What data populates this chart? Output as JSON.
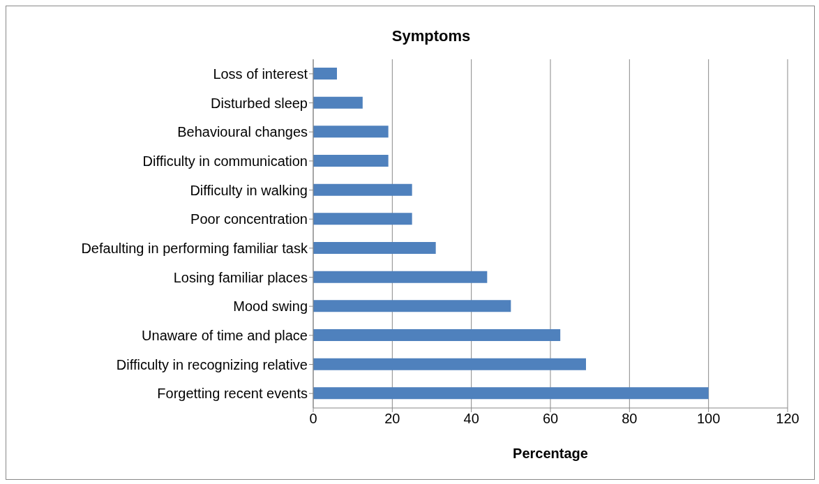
{
  "chart_data": {
    "type": "bar",
    "orientation": "horizontal",
    "title": "Symptoms",
    "xlabel": "Percentage",
    "categories": [
      "Loss of interest",
      "Disturbed sleep",
      "Behavioural changes",
      "Difficulty in communication",
      "Difficulty in walking",
      "Poor concentration",
      "Defaulting in performing familiar task",
      "Losing familiar places",
      "Mood swing",
      "Unaware of time and place",
      "Difficulty in recognizing relative",
      "Forgetting recent events"
    ],
    "values": [
      6,
      12.5,
      19,
      19,
      25,
      25,
      31,
      44,
      50,
      62.5,
      69,
      100
    ],
    "color": "#4f81bd",
    "xlim": [
      0,
      120
    ],
    "xticks": [
      0,
      20,
      40,
      60,
      80,
      100,
      120
    ],
    "grid": "x"
  }
}
